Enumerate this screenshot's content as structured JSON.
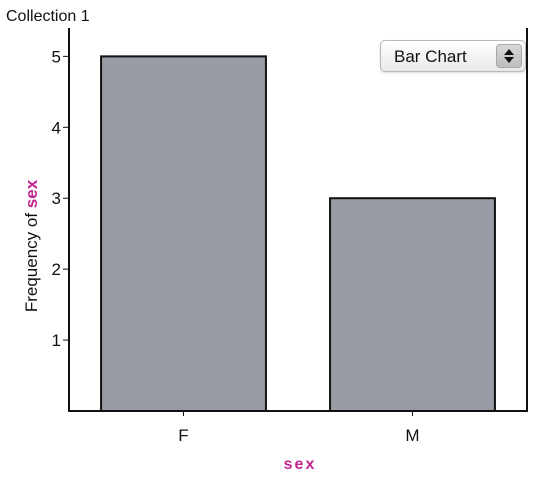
{
  "collection_title": "Collection 1",
  "chart_type_selector": {
    "selected": "Bar Chart",
    "icon": "up-down-stepper-icon"
  },
  "colors": {
    "bar_fill": "#9a9ca5",
    "bar_stroke": "#111111",
    "attribute": "#c2248f"
  },
  "chart_data": {
    "type": "bar",
    "categories": [
      "F",
      "M"
    ],
    "values": [
      5,
      3
    ],
    "title": "Collection 1",
    "xlabel": "sex",
    "ylabel": "Frequency of sex",
    "ylabel_prefix": "Frequency of ",
    "ylabel_attribute": "sex",
    "ylim": [
      0,
      5.4
    ],
    "yticks": [
      1,
      2,
      3,
      4,
      5
    ],
    "grid": false,
    "legend": "none"
  }
}
